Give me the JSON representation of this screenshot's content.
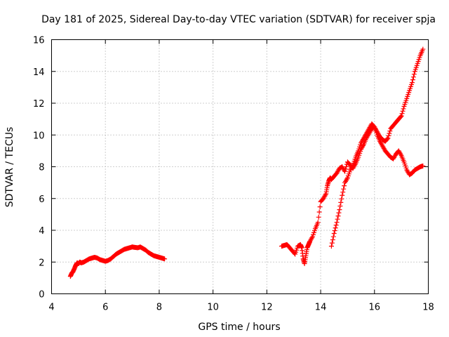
{
  "chart_data": {
    "type": "scatter",
    "title": "Day 181 of 2025, Sidereal Day-to-day VTEC variation (SDTVAR) for receiver spja",
    "xlabel": "GPS time / hours",
    "ylabel": "SDTVAR / TECUs",
    "xlim": [
      4,
      18
    ],
    "ylim": [
      0,
      16
    ],
    "xticks": [
      4,
      6,
      8,
      10,
      12,
      14,
      16,
      18
    ],
    "yticks": [
      0,
      2,
      4,
      6,
      8,
      10,
      12,
      14,
      16
    ],
    "grid": true,
    "marker": "+",
    "color": "#ff0000",
    "series": [
      {
        "name": "segment-1",
        "x": [
          4.7,
          4.75,
          4.8,
          4.85,
          4.9,
          4.95,
          5.0,
          5.05,
          5.1,
          5.2,
          5.3,
          5.4,
          5.5,
          5.6,
          5.7,
          5.8,
          5.9,
          6.0,
          6.1,
          6.2,
          6.3,
          6.4,
          6.5,
          6.6,
          6.7,
          6.8,
          6.9,
          7.0,
          7.1,
          7.2,
          7.3,
          7.4,
          7.5,
          7.6,
          7.7,
          7.8,
          7.9,
          8.0,
          8.1,
          8.2
        ],
        "values": [
          1.1,
          1.3,
          1.4,
          1.6,
          1.8,
          1.95,
          1.9,
          2.0,
          1.95,
          2.0,
          2.1,
          2.2,
          2.25,
          2.3,
          2.25,
          2.15,
          2.1,
          2.05,
          2.1,
          2.2,
          2.35,
          2.5,
          2.6,
          2.7,
          2.8,
          2.85,
          2.9,
          2.95,
          2.92,
          2.9,
          2.95,
          2.85,
          2.75,
          2.6,
          2.5,
          2.4,
          2.35,
          2.3,
          2.25,
          2.2
        ]
      },
      {
        "name": "segment-2",
        "x": [
          12.55,
          12.65,
          12.75,
          12.85,
          12.95,
          13.05,
          13.15,
          13.25,
          13.3,
          13.35,
          13.4,
          13.45,
          13.5,
          13.55,
          13.6,
          13.7,
          13.8,
          13.9,
          14.0,
          14.1,
          14.2,
          14.25,
          14.3,
          14.35,
          14.4,
          14.5,
          14.6,
          14.7,
          14.8,
          14.9,
          15.0,
          15.1,
          15.2,
          15.3,
          15.4,
          15.5,
          15.6,
          15.7,
          15.8,
          15.9,
          16.0,
          16.1,
          16.2,
          16.3,
          16.4,
          16.5,
          16.6,
          16.7,
          16.8,
          16.9,
          17.0,
          17.1,
          17.2,
          17.3,
          17.4,
          17.5,
          17.6,
          17.7,
          17.8
        ],
        "values": [
          3.0,
          3.05,
          3.1,
          2.9,
          2.7,
          2.5,
          3.0,
          3.1,
          2.9,
          2.2,
          1.9,
          2.4,
          2.9,
          3.1,
          3.3,
          3.6,
          4.1,
          4.5,
          5.8,
          6.0,
          6.3,
          6.8,
          7.1,
          7.3,
          7.2,
          7.4,
          7.6,
          7.9,
          8.0,
          7.7,
          8.3,
          8.1,
          7.9,
          8.2,
          8.6,
          9.1,
          9.4,
          9.8,
          10.1,
          10.4,
          10.5,
          10.2,
          9.9,
          9.7,
          9.6,
          9.8,
          10.4,
          10.6,
          10.8,
          11.0,
          11.2,
          11.8,
          12.3,
          12.8,
          13.3,
          14.0,
          14.5,
          15.0,
          15.4
        ]
      },
      {
        "name": "segment-3",
        "x": [
          14.4,
          14.5,
          14.6,
          14.7,
          14.8,
          14.9,
          15.0,
          15.1,
          15.2,
          15.3,
          15.4,
          15.5,
          15.6,
          15.7,
          15.8,
          15.9,
          16.0,
          16.1,
          16.2,
          16.3,
          16.4,
          16.5,
          16.6,
          16.7,
          16.8,
          16.9,
          17.0,
          17.1,
          17.2,
          17.3,
          17.4,
          17.5,
          17.6,
          17.7,
          17.8
        ],
        "values": [
          3.0,
          3.8,
          4.5,
          5.3,
          6.2,
          7.0,
          7.3,
          7.8,
          8.1,
          8.6,
          9.0,
          9.5,
          9.8,
          10.1,
          10.4,
          10.7,
          10.5,
          10.0,
          9.6,
          9.3,
          9.0,
          8.8,
          8.6,
          8.5,
          8.8,
          9.0,
          8.7,
          8.3,
          7.8,
          7.5,
          7.6,
          7.8,
          7.9,
          8.0,
          8.05
        ]
      }
    ]
  }
}
